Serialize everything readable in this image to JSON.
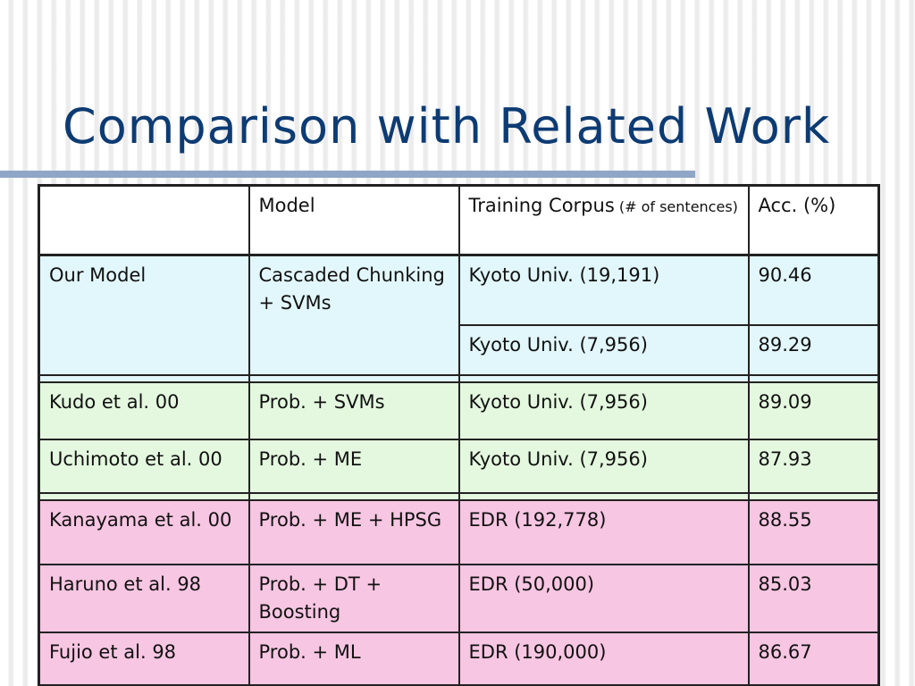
{
  "slide": {
    "title": "Comparison with Related Work"
  },
  "table": {
    "headers": {
      "blank": "",
      "model": "Model",
      "corpus_main": "Training Corpus",
      "corpus_note": " (# of sentences)",
      "acc": " Acc. (%)"
    },
    "ours": {
      "name": "Our Model",
      "model": "Cascaded Chunking + SVMs",
      "corpus_1": "Kyoto Univ. (19,191)",
      "acc_1": "90.46",
      "corpus_2": "Kyoto Univ. (7,956)",
      "acc_2": "89.29"
    },
    "rows": [
      {
        "name": "Kudo et al. 00",
        "model": "Prob. + SVMs",
        "corpus": "Kyoto Univ. (7,956)",
        "acc": "89.09"
      },
      {
        "name": "Uchimoto et al. 00",
        "model": "Prob. + ME",
        "corpus": "Kyoto Univ. (7,956)",
        "acc": "87.93"
      },
      {
        "name": "Kanayama et al. 00",
        "model": "Prob. + ME + HPSG",
        "corpus": "EDR (192,778)",
        "acc": "88.55"
      },
      {
        "name": "Haruno et al. 98",
        "model": "Prob. + DT + Boosting",
        "corpus": "EDR (50,000)",
        "acc": "85.03"
      },
      {
        "name": "Fujio et al. 98",
        "model": "Prob. + ML",
        "corpus": "EDR (190,000)",
        "acc": "86.67"
      }
    ],
    "colors": {
      "ours": "#e2f7fb",
      "kyoto_others": "#e4f8df",
      "edr": "#f7c6e2",
      "title": "#0d3b73",
      "rule": "#8fa6c6"
    }
  }
}
